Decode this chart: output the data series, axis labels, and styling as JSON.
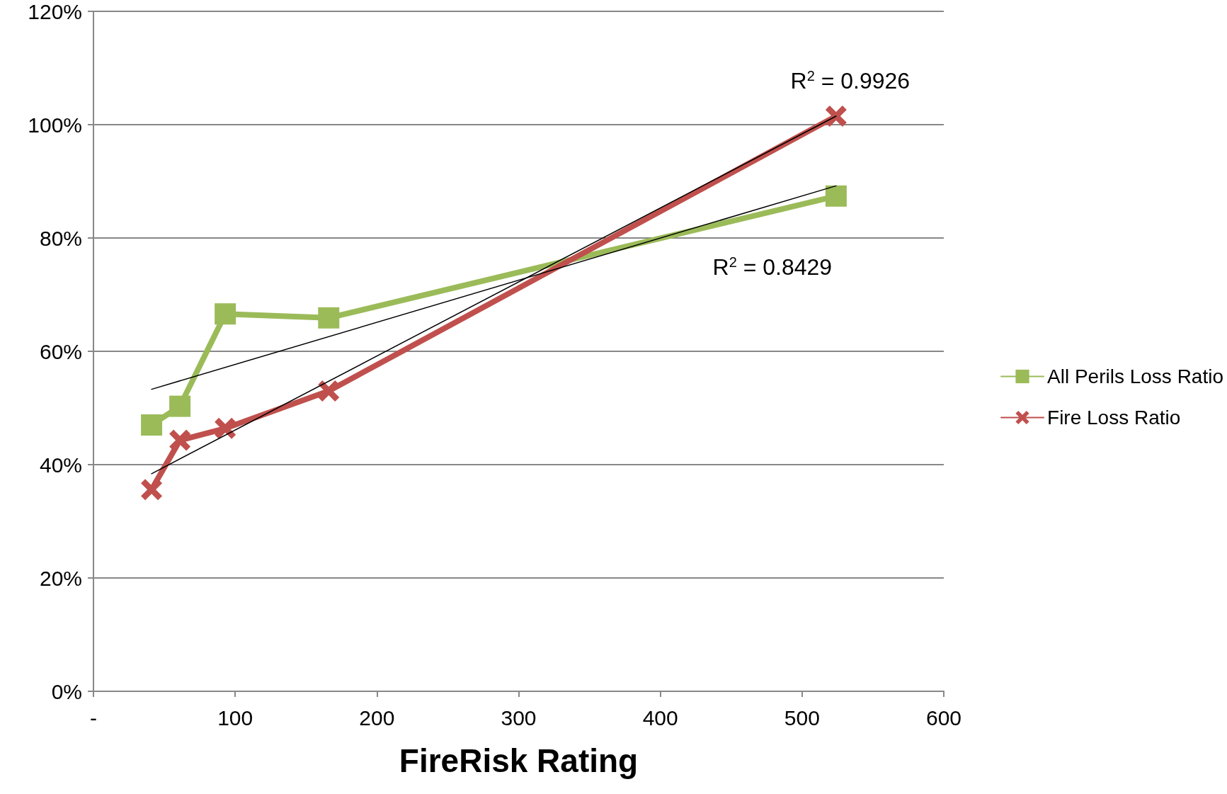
{
  "chart_data": {
    "type": "line",
    "xlabel": "FireRisk Rating",
    "series": [
      {
        "name": "All Perils Loss Ratio",
        "color": "#9bbb59",
        "marker": "square",
        "x": [
          41,
          61,
          93,
          166,
          524
        ],
        "values": [
          47.0,
          50.3,
          66.6,
          65.9,
          87.4
        ]
      },
      {
        "name": "Fire Loss Ratio",
        "color": "#c0504d",
        "marker": "cross",
        "x": [
          41,
          61,
          93,
          166,
          524
        ],
        "values": [
          35.6,
          44.3,
          46.4,
          53.0,
          101.5
        ]
      },
      {
        "color": "#000000",
        "marker": "none",
        "x": [
          41,
          524
        ],
        "values": [
          53.3,
          89.2
        ]
      },
      {
        "color": "#000000",
        "marker": "none",
        "x": [
          41,
          524
        ],
        "values": [
          38.4,
          101.5
        ]
      }
    ],
    "xlim": [
      0,
      600
    ],
    "xticks": [
      {
        "value": 0,
        "label": "-"
      },
      100,
      200,
      300,
      400,
      500,
      600
    ],
    "ylim": [
      0,
      120
    ],
    "yticks": [
      {
        "value": 0,
        "label": "0%"
      },
      {
        "value": 20,
        "label": "20%"
      },
      {
        "value": 40,
        "label": "40%"
      },
      {
        "value": 60,
        "label": "60%"
      },
      {
        "value": 80,
        "label": "80%"
      },
      {
        "value": 100,
        "label": "100%"
      },
      {
        "value": 120,
        "label": "120%"
      }
    ],
    "annotations": [
      "R$^{2}$ = 0.9926",
      "R$^{2}$ = 0.8429"
    ],
    "grid": "y",
    "legend": "right",
    "line_style": "solid"
  }
}
